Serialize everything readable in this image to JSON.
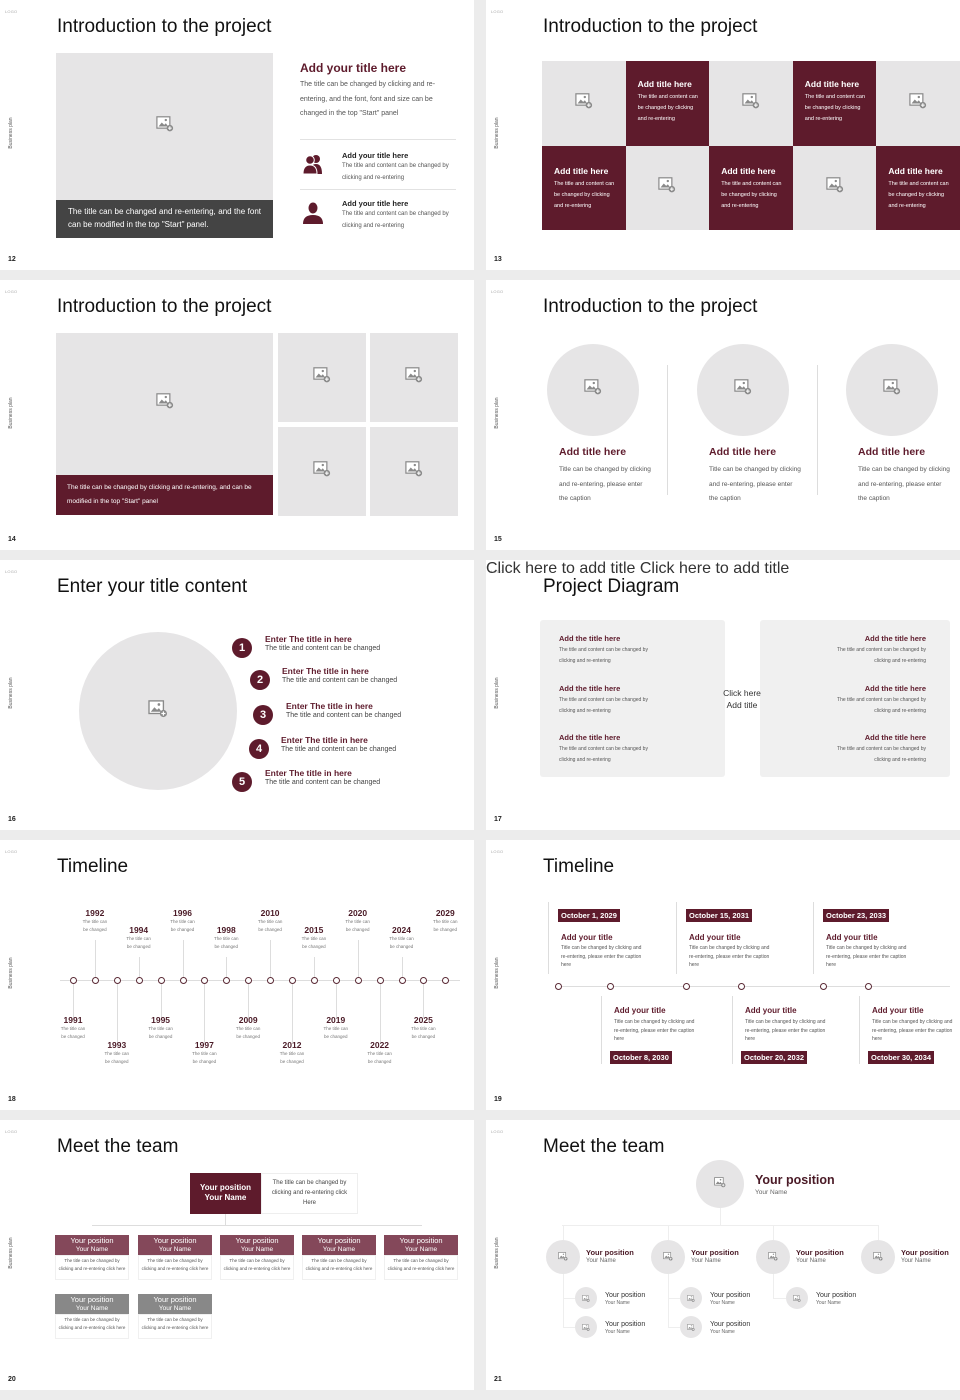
{
  "common": {
    "side_label": "Business plan",
    "logo_text": "LOGO"
  },
  "colors": {
    "accent": "#5e1b2c",
    "accent_light": "#84485a",
    "placeholder": "#e6e5e6",
    "dark_caption": "#444444",
    "gray_header": "#888888"
  },
  "slides": {
    "s12": {
      "page": "12",
      "title": "Introduction to the project",
      "image_caption": "The title can be changed and re-entering, and the font can be modified in the top \"Start\" panel.",
      "heading": "Add your title here",
      "paragraph": "The title can be changed by clicking and re-entering, and the font, font and size can be changed in the top \"Start\" panel",
      "items": [
        {
          "icon": "people-icon",
          "title": "Add your title here",
          "text": "The title and content can be changed by clicking and re-entering"
        },
        {
          "icon": "person-icon",
          "title": "Add your title here",
          "text": "The title and content can be changed by clicking and re-entering"
        }
      ]
    },
    "s13": {
      "page": "13",
      "title": "Introduction to the project",
      "cells": [
        {
          "type": "image"
        },
        {
          "type": "text",
          "title": "Add title here",
          "text": "The title and content can be changed by clicking and re-entering"
        },
        {
          "type": "image"
        },
        {
          "type": "text",
          "title": "Add title here",
          "text": "The title and content can be changed by clicking and re-entering"
        },
        {
          "type": "image"
        },
        {
          "type": "text",
          "title": "Add title here",
          "text": "The title and content can be changed by clicking and re-entering"
        },
        {
          "type": "image"
        },
        {
          "type": "text",
          "title": "Add title here",
          "text": "The title and content can be changed by clicking and re-entering"
        },
        {
          "type": "image"
        },
        {
          "type": "text",
          "title": "Add title here",
          "text": "The title and content can be changed by clicking and re-entering"
        }
      ]
    },
    "s14": {
      "page": "14",
      "title": "Introduction to the project",
      "caption": "The title can be changed by clicking and re-entering, and can be modified in the top \"Start\" panel"
    },
    "s15": {
      "page": "15",
      "title": "Introduction to the project",
      "items": [
        {
          "title": "Add title here",
          "text": "Title can be changed by clicking and re-entering, please enter the caption"
        },
        {
          "title": "Add title here",
          "text": "Title can be changed by clicking and re-entering, please enter the caption"
        },
        {
          "title": "Add title here",
          "text": "Title can be changed by clicking and re-entering, please enter the caption"
        }
      ]
    },
    "s16": {
      "page": "16",
      "title": "Enter your title content",
      "items": [
        {
          "num": "1",
          "title": "Enter The title in here",
          "text": "The title and content can be changed"
        },
        {
          "num": "2",
          "title": "Enter The title in here",
          "text": "The title and content can be changed"
        },
        {
          "num": "3",
          "title": "Enter The title in here",
          "text": "The title and content can be changed"
        },
        {
          "num": "4",
          "title": "Enter The title in here",
          "text": "The title and content can be changed"
        },
        {
          "num": "5",
          "title": "Enter The title in here",
          "text": "The title and content can be changed"
        }
      ]
    },
    "s17": {
      "page": "17",
      "title": "Project Diagram",
      "center_line1": "Click here",
      "center_line2": "Add title",
      "arc_left": "Click here to add title",
      "arc_right": "Click here to add title",
      "left": [
        {
          "title": "Add the title here",
          "text": "The title and content can be changed by clicking and re-entering"
        },
        {
          "title": "Add the title here",
          "text": "The title and content can be changed by clicking and re-entering"
        },
        {
          "title": "Add the title here",
          "text": "The title and content can be changed by clicking and re-entering"
        }
      ],
      "right": [
        {
          "title": "Add the title here",
          "text": "The title and content can be changed by clicking and re-entering"
        },
        {
          "title": "Add the title here",
          "text": "The title and content can be changed by clicking and re-entering"
        },
        {
          "title": "Add the title here",
          "text": "The title and content can be changed by clicking and re-entering"
        }
      ]
    },
    "s18": {
      "page": "18",
      "title": "Timeline",
      "items": [
        {
          "year": "1991",
          "text": "The title can be changed"
        },
        {
          "year": "1992",
          "text": "The title can be changed"
        },
        {
          "year": "1993",
          "text": "The title can be changed"
        },
        {
          "year": "1994",
          "text": "The title can be changed"
        },
        {
          "year": "1995",
          "text": "The title can be changed"
        },
        {
          "year": "1996",
          "text": "The title can be changed"
        },
        {
          "year": "1997",
          "text": "The title can be changed"
        },
        {
          "year": "1998",
          "text": "The title can be changed"
        },
        {
          "year": "2009",
          "text": "The title can be changed"
        },
        {
          "year": "2010",
          "text": "The title can be changed"
        },
        {
          "year": "2012",
          "text": "The title can be changed"
        },
        {
          "year": "2015",
          "text": "The title can be changed"
        },
        {
          "year": "2019",
          "text": "The title can be changed"
        },
        {
          "year": "2020",
          "text": "The title can be changed"
        },
        {
          "year": "2022",
          "text": "The title can be changed"
        },
        {
          "year": "2024",
          "text": "The title can be changed"
        },
        {
          "year": "2025",
          "text": "The title can be changed"
        },
        {
          "year": "2029",
          "text": "The title can be changed"
        }
      ]
    },
    "s19": {
      "page": "19",
      "title": "Timeline",
      "items": [
        {
          "date": "October 1, 2029",
          "title": "Add your title",
          "text": "Title can be changed by clicking and re-entering, please enter the caption here"
        },
        {
          "date": "October 8, 2030",
          "title": "Add your title",
          "text": "Title can be changed by clicking and re-entering, please enter the caption here"
        },
        {
          "date": "October 15, 2031",
          "title": "Add your title",
          "text": "Title can be changed by clicking and re-entering, please enter the caption here"
        },
        {
          "date": "October 20, 2032",
          "title": "Add your title",
          "text": "Title can be changed by clicking and re-entering, please enter the caption here"
        },
        {
          "date": "October 23, 2033",
          "title": "Add your title",
          "text": "Title can be changed by clicking and re-entering, please enter the caption here"
        },
        {
          "date": "October 30, 2034",
          "title": "Add your title",
          "text": "Title can be changed by clicking and re-entering, please enter the caption here"
        }
      ]
    },
    "s20": {
      "page": "20",
      "title": "Meet the team",
      "top": {
        "position": "Your position",
        "name": "Your Name",
        "text": "The title can be changed by clicking and re-entering click Here"
      },
      "row1": [
        {
          "position": "Your position",
          "name": "Your Name",
          "text": "The title can be changed by clicking and re-entering click here"
        },
        {
          "position": "Your position",
          "name": "Your Name",
          "text": "The title can be changed by clicking and re-entering click here"
        },
        {
          "position": "Your position",
          "name": "Your Name",
          "text": "The title can be changed by clicking and re-entering click here"
        },
        {
          "position": "Your position",
          "name": "Your Name",
          "text": "The title can be changed by clicking and re-entering click here"
        },
        {
          "position": "Your position",
          "name": "Your Name",
          "text": "The title can be changed by clicking and re-entering click here"
        }
      ],
      "row2": [
        {
          "position": "Your position",
          "name": "Your Name",
          "text": "The title can be changed by clicking and re-entering click here"
        },
        {
          "position": "Your position",
          "name": "Your Name",
          "text": "The title can be changed by clicking and re-entering click here"
        }
      ]
    },
    "s21": {
      "page": "21",
      "title": "Meet the team",
      "top": {
        "position": "Your position",
        "name": "Your Name"
      },
      "level1": [
        {
          "position": "Your position",
          "name": "Your Name"
        },
        {
          "position": "Your position",
          "name": "Your Name"
        },
        {
          "position": "Your position",
          "name": "Your Name"
        },
        {
          "position": "Your position",
          "name": "Your Name"
        }
      ],
      "level2": [
        {
          "position": "Your position",
          "name": "Your Name"
        },
        {
          "position": "Your position",
          "name": "Your Name"
        },
        {
          "position": "Your position",
          "name": "Your Name"
        },
        {
          "position": "Your position",
          "name": "Your Name"
        },
        {
          "position": "Your position",
          "name": "Your Name"
        }
      ]
    }
  }
}
